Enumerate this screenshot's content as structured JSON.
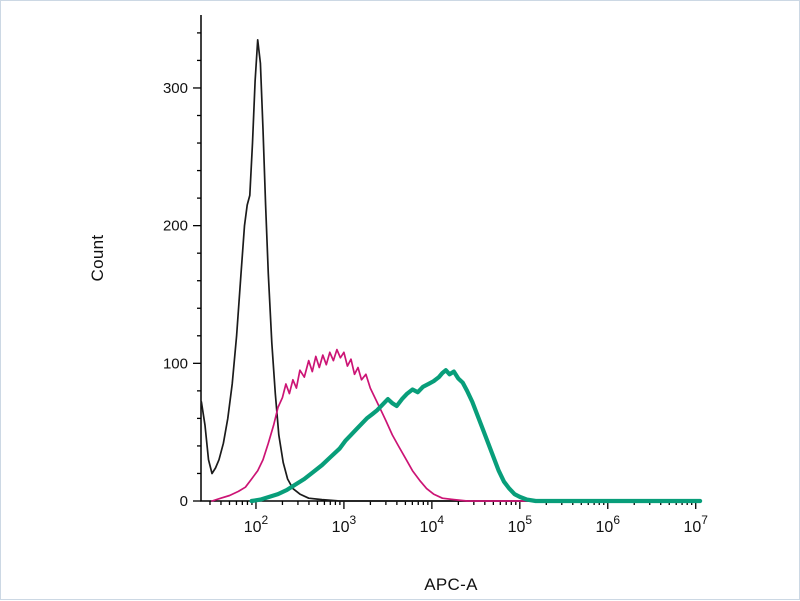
{
  "window": {
    "background": "#ffffff",
    "border_color": "#ccd8e4"
  },
  "chart_data": {
    "type": "line",
    "chart_kind": "flow-cytometry-histogram-overlay",
    "title": "",
    "xlabel": "APC-A",
    "ylabel": "Count",
    "grid": false,
    "legend": "none",
    "x_scale": "log10",
    "x_axis": {
      "min_log10": 1.375,
      "max_log10": 7.06,
      "major_ticks_log10": [
        2,
        3,
        4,
        5,
        6,
        7
      ],
      "tick_labels": [
        {
          "base": "10",
          "exp": "2"
        },
        {
          "base": "10",
          "exp": "3"
        },
        {
          "base": "10",
          "exp": "4"
        },
        {
          "base": "10",
          "exp": "5"
        },
        {
          "base": "10",
          "exp": "6"
        },
        {
          "base": "10",
          "exp": "7"
        }
      ],
      "minor_ticks": "multiples 2-9 within each decade"
    },
    "y_axis": {
      "min": 0,
      "max": 353,
      "major_ticks": [
        0,
        100,
        200,
        300
      ],
      "minor_tick_step": 20
    },
    "axis_color": "#000000",
    "series": [
      {
        "name": "black",
        "color": "#1b1b1b",
        "stroke_width": 1.7,
        "peak": {
          "x_log10": 2.02,
          "count": 335
        },
        "points": [
          [
            1.38,
            72
          ],
          [
            1.42,
            55
          ],
          [
            1.46,
            30
          ],
          [
            1.5,
            20
          ],
          [
            1.54,
            24
          ],
          [
            1.58,
            30
          ],
          [
            1.63,
            42
          ],
          [
            1.68,
            60
          ],
          [
            1.73,
            85
          ],
          [
            1.78,
            120
          ],
          [
            1.83,
            165
          ],
          [
            1.87,
            200
          ],
          [
            1.9,
            215
          ],
          [
            1.93,
            222
          ],
          [
            1.96,
            260
          ],
          [
            1.99,
            305
          ],
          [
            2.02,
            335
          ],
          [
            2.05,
            318
          ],
          [
            2.08,
            270
          ],
          [
            2.11,
            215
          ],
          [
            2.14,
            165
          ],
          [
            2.18,
            115
          ],
          [
            2.22,
            78
          ],
          [
            2.26,
            48
          ],
          [
            2.31,
            28
          ],
          [
            2.36,
            16
          ],
          [
            2.42,
            9
          ],
          [
            2.5,
            5
          ],
          [
            2.6,
            2
          ],
          [
            2.75,
            1
          ],
          [
            2.95,
            0
          ],
          [
            7.05,
            0
          ]
        ]
      },
      {
        "name": "magenta",
        "color": "#cc1475",
        "stroke_width": 1.7,
        "peak": {
          "x_log10": 2.92,
          "count": 110
        },
        "points": [
          [
            1.5,
            0
          ],
          [
            1.6,
            2
          ],
          [
            1.7,
            4
          ],
          [
            1.8,
            7
          ],
          [
            1.88,
            10
          ],
          [
            1.95,
            16
          ],
          [
            2.02,
            22
          ],
          [
            2.08,
            30
          ],
          [
            2.14,
            42
          ],
          [
            2.2,
            55
          ],
          [
            2.25,
            68
          ],
          [
            2.3,
            75
          ],
          [
            2.34,
            85
          ],
          [
            2.38,
            78
          ],
          [
            2.42,
            88
          ],
          [
            2.46,
            82
          ],
          [
            2.5,
            95
          ],
          [
            2.55,
            90
          ],
          [
            2.6,
            102
          ],
          [
            2.64,
            94
          ],
          [
            2.68,
            105
          ],
          [
            2.72,
            97
          ],
          [
            2.76,
            106
          ],
          [
            2.8,
            99
          ],
          [
            2.84,
            108
          ],
          [
            2.88,
            102
          ],
          [
            2.92,
            110
          ],
          [
            2.96,
            104
          ],
          [
            3.0,
            108
          ],
          [
            3.04,
            98
          ],
          [
            3.08,
            103
          ],
          [
            3.12,
            92
          ],
          [
            3.16,
            97
          ],
          [
            3.2,
            88
          ],
          [
            3.25,
            92
          ],
          [
            3.3,
            82
          ],
          [
            3.36,
            74
          ],
          [
            3.42,
            66
          ],
          [
            3.48,
            58
          ],
          [
            3.55,
            48
          ],
          [
            3.62,
            40
          ],
          [
            3.7,
            31
          ],
          [
            3.78,
            22
          ],
          [
            3.86,
            15
          ],
          [
            3.94,
            9
          ],
          [
            4.02,
            5
          ],
          [
            4.12,
            2
          ],
          [
            4.25,
            1
          ],
          [
            4.4,
            0
          ],
          [
            7.05,
            0
          ]
        ]
      },
      {
        "name": "teal",
        "color": "#089e7a",
        "stroke_width": 4.2,
        "peak": {
          "x_log10": 4.16,
          "count": 95
        },
        "points": [
          [
            1.95,
            0
          ],
          [
            2.05,
            1
          ],
          [
            2.15,
            3
          ],
          [
            2.25,
            5
          ],
          [
            2.35,
            8
          ],
          [
            2.45,
            12
          ],
          [
            2.55,
            16
          ],
          [
            2.65,
            21
          ],
          [
            2.75,
            26
          ],
          [
            2.85,
            32
          ],
          [
            2.95,
            38
          ],
          [
            3.02,
            44
          ],
          [
            3.08,
            48
          ],
          [
            3.14,
            52
          ],
          [
            3.2,
            56
          ],
          [
            3.26,
            60
          ],
          [
            3.32,
            63
          ],
          [
            3.38,
            66
          ],
          [
            3.44,
            70
          ],
          [
            3.5,
            74
          ],
          [
            3.55,
            71
          ],
          [
            3.6,
            69
          ],
          [
            3.66,
            74
          ],
          [
            3.72,
            78
          ],
          [
            3.78,
            81
          ],
          [
            3.84,
            79
          ],
          [
            3.9,
            83
          ],
          [
            3.96,
            85
          ],
          [
            4.02,
            87
          ],
          [
            4.08,
            90
          ],
          [
            4.12,
            93
          ],
          [
            4.16,
            95
          ],
          [
            4.2,
            92
          ],
          [
            4.25,
            94
          ],
          [
            4.3,
            89
          ],
          [
            4.35,
            86
          ],
          [
            4.4,
            80
          ],
          [
            4.46,
            72
          ],
          [
            4.52,
            62
          ],
          [
            4.58,
            52
          ],
          [
            4.64,
            42
          ],
          [
            4.7,
            32
          ],
          [
            4.76,
            22
          ],
          [
            4.82,
            14
          ],
          [
            4.88,
            9
          ],
          [
            4.94,
            5
          ],
          [
            5.0,
            3
          ],
          [
            5.08,
            1
          ],
          [
            5.18,
            0
          ],
          [
            7.05,
            0
          ]
        ]
      }
    ]
  }
}
